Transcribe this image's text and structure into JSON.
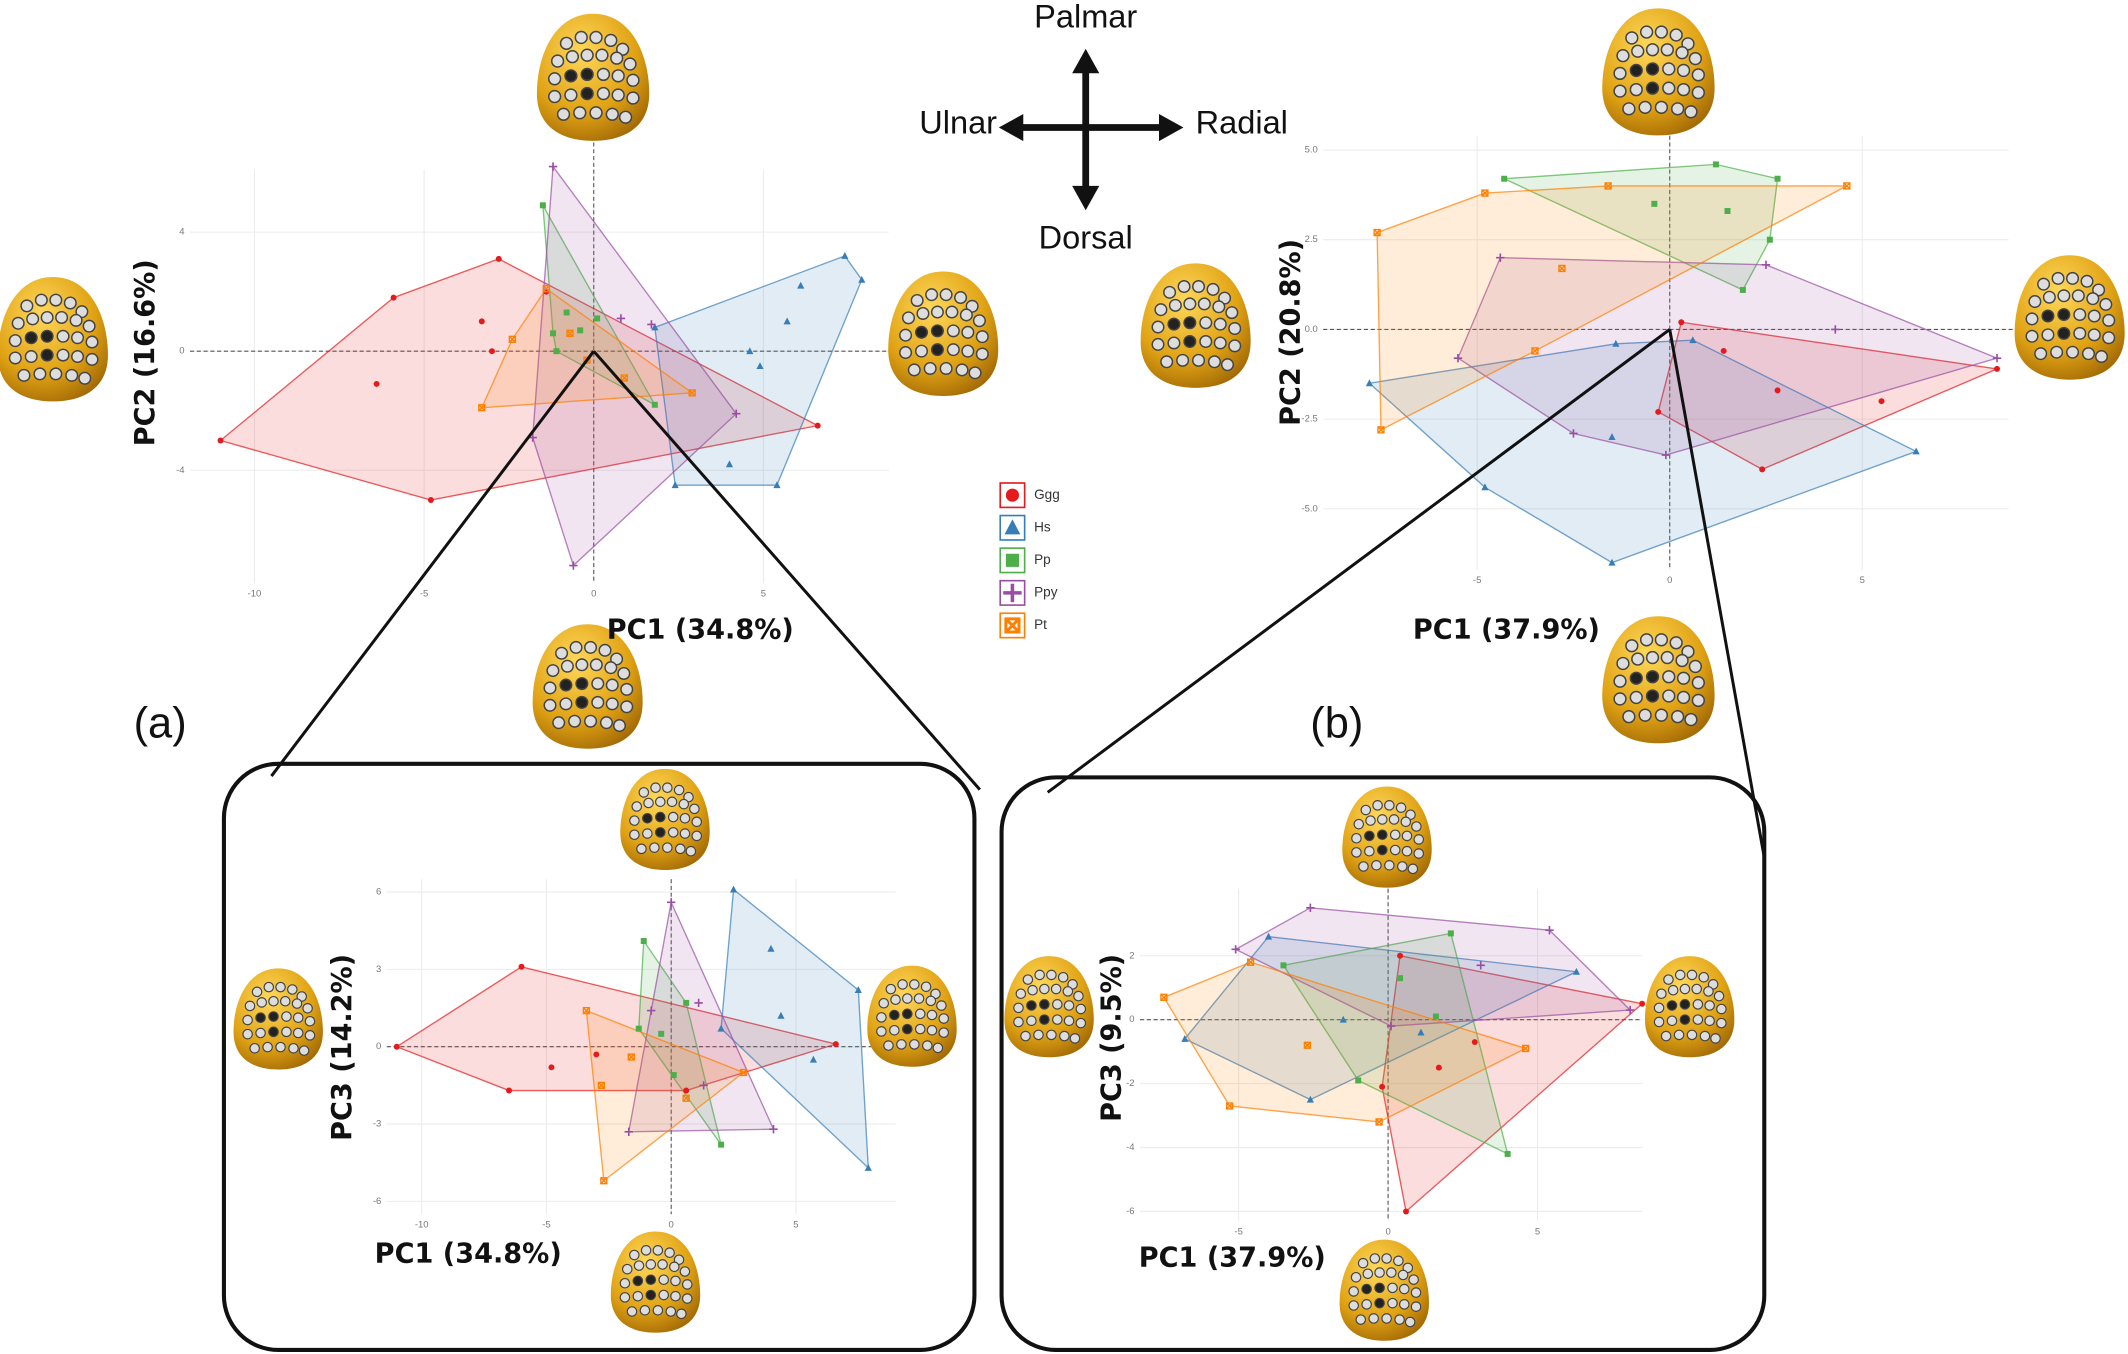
{
  "chart_data": [
    {
      "type": "scatter",
      "xlabel": "PC1 (34.8%)",
      "ylabel": "PC2 (16.6%)",
      "xlim": [
        -11.9,
        8.7
      ],
      "ylim": [
        -7.8,
        6.1
      ],
      "xticks": [
        -10,
        -5,
        0,
        5
      ],
      "yticks": [
        -4,
        0,
        4
      ],
      "grid": true,
      "series": [
        {
          "name": "Ggg",
          "color": "#e41a1c",
          "marker": "circle",
          "x": [
            -11.0,
            -4.8,
            6.6,
            -1.4,
            -2.8,
            -5.9,
            -3.0,
            -6.4,
            -3.3
          ],
          "y": [
            -3.0,
            -5.0,
            -2.5,
            2.0,
            3.1,
            1.8,
            0.0,
            -1.1,
            1.0
          ]
        },
        {
          "name": "Hs",
          "color": "#377eb8",
          "marker": "triangle",
          "x": [
            7.4,
            7.9,
            5.4,
            2.4,
            1.8,
            6.1,
            4.9,
            5.7,
            4.0,
            4.6
          ],
          "y": [
            3.2,
            2.4,
            -4.5,
            -4.5,
            0.8,
            2.2,
            -0.5,
            1.0,
            -3.8,
            0.0
          ]
        },
        {
          "name": "Pp",
          "color": "#4daf4a",
          "marker": "square",
          "x": [
            -1.5,
            -1.2,
            1.8,
            0.1,
            -0.4,
            -0.8,
            -1.1
          ],
          "y": [
            4.9,
            0.6,
            -1.8,
            1.1,
            0.7,
            1.3,
            0.0
          ]
        },
        {
          "name": "Ppy",
          "color": "#984ea3",
          "marker": "plus",
          "x": [
            -1.2,
            -0.6,
            -1.8,
            4.2,
            1.7,
            0.8
          ],
          "y": [
            6.2,
            -7.2,
            -2.9,
            -2.1,
            0.9,
            1.1
          ]
        },
        {
          "name": "Pt",
          "color": "#ff7f00",
          "marker": "boxx",
          "x": [
            -3.3,
            -1.4,
            2.9,
            -0.2,
            -2.4,
            -0.7,
            0.9
          ],
          "y": [
            -1.9,
            2.1,
            -1.4,
            -0.3,
            0.4,
            0.6,
            -0.9
          ]
        }
      ]
    },
    {
      "type": "scatter",
      "xlabel": "PC1 (37.9%)",
      "ylabel": "PC2 (20.8%)",
      "xlim": [
        -9.0,
        8.8
      ],
      "ylim": [
        -6.7,
        5.4
      ],
      "xticks": [
        -5,
        0,
        5
      ],
      "yticks": [
        {
          "value": -5,
          "label": "-5.0"
        },
        -2.5,
        {
          "value": 0,
          "label": "0.0"
        },
        2.5,
        {
          "value": 5,
          "label": "5.0"
        }
      ],
      "grid": true,
      "series": [
        {
          "name": "Ggg",
          "color": "#e41a1c",
          "marker": "circle",
          "x": [
            0.3,
            8.5,
            2.4,
            -0.3,
            2.8,
            5.5,
            1.4
          ],
          "y": [
            0.2,
            -1.1,
            -3.9,
            -2.3,
            -1.7,
            -2.0,
            -0.6
          ]
        },
        {
          "name": "Hs",
          "color": "#377eb8",
          "marker": "triangle",
          "x": [
            -7.8,
            -1.5,
            6.4,
            0.6,
            -1.5,
            -4.8,
            -1.4
          ],
          "y": [
            -1.5,
            -6.5,
            -3.4,
            -0.3,
            -3.0,
            -4.4,
            -0.4
          ]
        },
        {
          "name": "Pp",
          "color": "#4daf4a",
          "marker": "square",
          "x": [
            -4.3,
            1.2,
            2.8,
            2.6,
            1.9,
            1.5,
            -0.4
          ],
          "y": [
            4.2,
            4.6,
            4.2,
            2.5,
            1.1,
            3.3,
            3.5
          ]
        },
        {
          "name": "Ppy",
          "color": "#984ea3",
          "marker": "plus",
          "x": [
            -5.5,
            -4.4,
            2.5,
            8.5,
            -0.1,
            4.3,
            -2.5
          ],
          "y": [
            -0.8,
            2.0,
            1.8,
            -0.8,
            -3.5,
            0.0,
            -2.9
          ]
        },
        {
          "name": "Pt",
          "color": "#ff7f00",
          "marker": "boxx",
          "x": [
            -7.6,
            -7.5,
            4.6,
            -2.8,
            -1.6,
            -4.8,
            -3.5
          ],
          "y": [
            2.7,
            -2.8,
            4.0,
            1.7,
            4.0,
            3.8,
            -0.6
          ]
        }
      ]
    },
    {
      "type": "scatter",
      "xlabel": "PC1 (34.8%)",
      "ylabel": "PC3 (14.2%)",
      "xlim": [
        -11.4,
        9.0
      ],
      "ylim": [
        -6.5,
        6.5
      ],
      "xticks": [
        -10,
        -5,
        0,
        5
      ],
      "yticks": [
        -6,
        -3,
        0,
        3,
        6
      ],
      "grid": true,
      "series": [
        {
          "name": "Ggg",
          "color": "#e41a1c",
          "marker": "circle",
          "x": [
            -11.0,
            -6.0,
            6.6,
            -6.5,
            0.6,
            -3.0,
            -4.8
          ],
          "y": [
            0.0,
            3.1,
            0.1,
            -1.7,
            -1.7,
            -0.3,
            -0.8
          ]
        },
        {
          "name": "Hs",
          "color": "#377eb8",
          "marker": "triangle",
          "x": [
            2.5,
            7.5,
            7.9,
            2.0,
            4.4,
            5.7,
            4.0
          ],
          "y": [
            6.1,
            2.2,
            -4.7,
            0.7,
            1.2,
            -0.5,
            3.8
          ]
        },
        {
          "name": "Pp",
          "color": "#4daf4a",
          "marker": "square",
          "x": [
            -1.1,
            -1.3,
            2.0,
            0.1,
            -0.4,
            0.6
          ],
          "y": [
            4.1,
            0.7,
            -3.8,
            -1.1,
            0.5,
            1.7
          ]
        },
        {
          "name": "Ppy",
          "color": "#984ea3",
          "marker": "plus",
          "x": [
            0.0,
            4.1,
            -1.7,
            1.3,
            -0.8,
            1.1
          ],
          "y": [
            5.6,
            -3.2,
            -3.3,
            -1.5,
            1.4,
            1.7
          ]
        },
        {
          "name": "Pt",
          "color": "#ff7f00",
          "marker": "boxx",
          "x": [
            -3.4,
            -2.7,
            2.9,
            0.6,
            -2.8,
            -1.6
          ],
          "y": [
            1.4,
            -5.2,
            -1.0,
            -2.0,
            -1.5,
            -0.4
          ]
        }
      ]
    },
    {
      "type": "scatter",
      "xlabel": "PC1 (37.9%)",
      "ylabel": "PC3 (9.5%)",
      "xlim": [
        -8.3,
        8.5
      ],
      "ylim": [
        -6.3,
        4.1
      ],
      "xticks": [
        -5,
        0,
        5
      ],
      "yticks": [
        -6,
        -4,
        -2,
        0,
        2
      ],
      "grid": true,
      "series": [
        {
          "name": "Ggg",
          "color": "#e41a1c",
          "marker": "circle",
          "x": [
            0.6,
            0.4,
            8.5,
            -0.2,
            2.9,
            1.7
          ],
          "y": [
            -6.0,
            2.0,
            0.5,
            -2.1,
            -0.7,
            -1.5
          ]
        },
        {
          "name": "Hs",
          "color": "#377eb8",
          "marker": "triangle",
          "x": [
            -6.8,
            -4.0,
            6.3,
            -2.6,
            -1.5,
            1.1
          ],
          "y": [
            -0.6,
            2.6,
            1.5,
            -2.5,
            0.0,
            -0.4
          ]
        },
        {
          "name": "Pp",
          "color": "#4daf4a",
          "marker": "square",
          "x": [
            -3.5,
            2.1,
            4.0,
            -1.0,
            1.6,
            0.4
          ],
          "y": [
            1.7,
            2.7,
            -4.2,
            -1.9,
            0.1,
            1.3
          ]
        },
        {
          "name": "Ppy",
          "color": "#984ea3",
          "marker": "plus",
          "x": [
            -5.1,
            -2.6,
            5.4,
            8.1,
            0.1,
            3.1
          ],
          "y": [
            2.2,
            3.5,
            2.8,
            0.3,
            -0.2,
            1.7
          ]
        },
        {
          "name": "Pt",
          "color": "#ff7f00",
          "marker": "boxx",
          "x": [
            -7.5,
            -4.6,
            4.6,
            -0.3,
            -2.7,
            -5.3
          ],
          "y": [
            0.7,
            1.8,
            -0.9,
            -3.2,
            -0.8,
            -2.7
          ]
        }
      ]
    }
  ],
  "annotations": {
    "palmar": "Palmar",
    "dorsal": "Dorsal",
    "ulnar": "Ulnar",
    "radial": "Radial",
    "panel_a": "(a)",
    "panel_b": "(b)"
  }
}
